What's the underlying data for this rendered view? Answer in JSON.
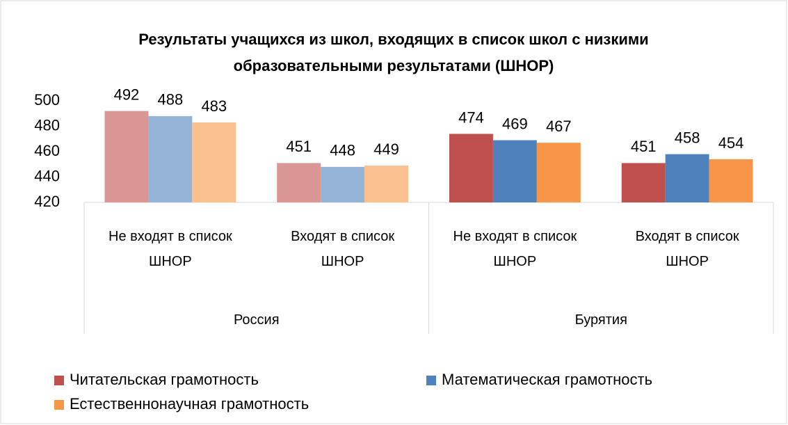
{
  "chart_data": {
    "type": "bar",
    "title": "Результаты учащихся из школ, входящих в список школ с низкими образовательными результатами (ШНОР)",
    "groups": [
      {
        "name": "Россия",
        "categories": [
          "Не входят в список ШНОР",
          "Входят в список ШНОР"
        ]
      },
      {
        "name": "Бурятия",
        "categories": [
          "Не входят в список ШНОР",
          "Входят в список ШНОР"
        ]
      }
    ],
    "series": [
      {
        "name": "Читательская грамотность",
        "color": "#c0504d",
        "colors": [
          "#d99694",
          "#d99694",
          "#c0504d",
          "#c0504d"
        ],
        "values": [
          492,
          451,
          474,
          451
        ]
      },
      {
        "name": "Математическая грамотность",
        "color": "#4f81bd",
        "colors": [
          "#95b3d7",
          "#95b3d7",
          "#4f81bd",
          "#4f81bd"
        ],
        "values": [
          488,
          448,
          469,
          458
        ]
      },
      {
        "name": "Естественнонаучная грамотность",
        "color": "#f79646",
        "colors": [
          "#fac090",
          "#fac090",
          "#f79646",
          "#f79646"
        ],
        "values": [
          483,
          449,
          467,
          454
        ]
      }
    ],
    "ylim": [
      420,
      500
    ],
    "yticks": [
      420,
      440,
      460,
      480,
      500
    ],
    "legend": "bottom"
  }
}
